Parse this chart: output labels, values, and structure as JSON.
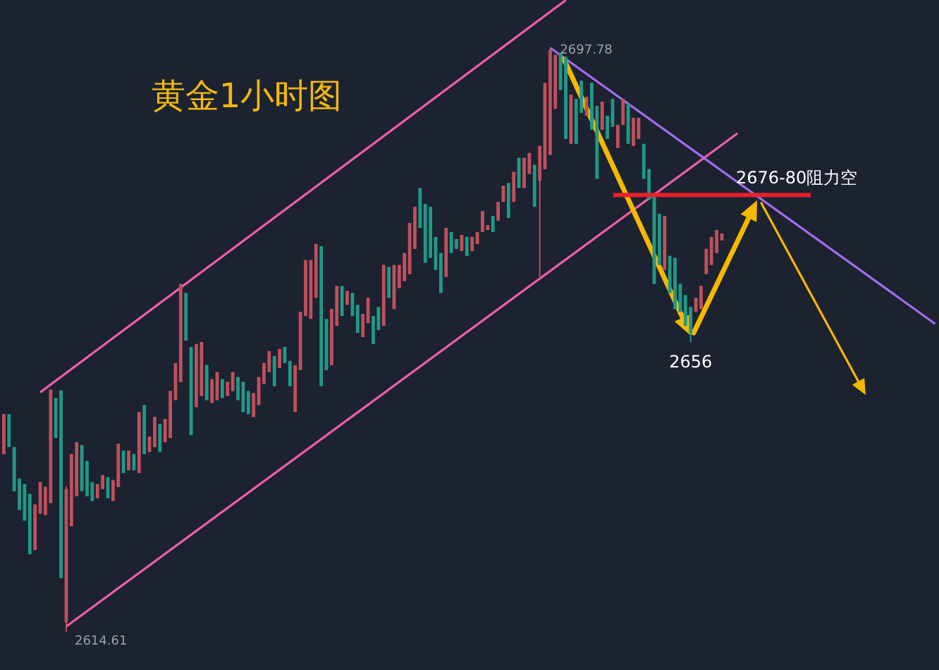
{
  "chart_data": {
    "type": "candlestick",
    "title": "黄金1小时图",
    "categories": [
      null,
      null,
      null,
      null,
      null,
      null,
      null,
      null,
      null,
      null,
      null,
      null,
      null,
      null,
      null,
      null,
      null,
      null,
      null,
      null,
      null,
      null,
      null,
      null,
      null,
      null,
      null,
      null,
      null,
      null,
      null,
      null,
      null,
      null,
      null,
      null,
      null,
      null,
      null,
      null,
      null,
      null,
      null,
      null,
      null,
      null,
      null,
      null,
      null,
      null,
      null,
      null,
      null,
      null,
      null,
      null,
      null,
      null,
      null,
      null,
      null,
      null,
      null,
      null,
      null,
      null,
      null,
      null,
      null,
      null,
      null,
      null,
      null,
      null,
      null,
      null,
      null,
      null,
      null,
      null,
      null,
      null,
      null,
      null,
      null,
      null,
      null,
      null,
      null,
      null,
      null,
      null,
      null,
      null,
      null,
      null,
      null,
      null,
      null,
      null,
      null,
      null,
      null,
      null,
      null,
      null,
      null,
      null,
      null,
      null,
      null,
      null,
      null,
      null,
      null,
      null,
      null,
      null,
      null,
      null,
      null,
      null,
      null,
      null,
      null,
      null,
      null,
      null,
      null,
      null,
      null,
      null,
      null,
      null,
      null,
      null,
      null,
      null,
      null,
      null,
      null,
      null,
      null,
      null,
      null,
      null,
      null,
      null,
      null,
      null,
      null,
      null,
      null,
      null,
      null,
      null,
      null,
      null,
      null,
      null,
      null,
      null,
      null,
      null,
      null,
      null,
      null,
      null,
      null,
      null,
      null,
      null,
      null,
      null,
      null,
      null,
      null,
      null,
      null,
      null
    ],
    "colors": [
      "#c0505d",
      "#1f9a87",
      "#1f9a87",
      "#1f9a87",
      "#1f9a87",
      "#1f9a87",
      "#c0505d",
      "#c0505d",
      "#c0505d",
      "#c0505d",
      "#1f9a87",
      "#1f9a87",
      "#c0505d",
      "#c0505d",
      "#c0505d",
      "#1f9a87",
      "#1f9a87",
      "#1f9a87",
      "#c0505d",
      "#c0505d",
      "#1f9a87",
      "#c0505d",
      "#c0505d",
      "#1f9a87",
      "#c0505d",
      "#1f9a87",
      "#c0505d",
      "#1f9a87",
      "#c0505d",
      "#c0505d",
      "#1f9a87",
      "#c0505d",
      "#c0505d",
      "#c0505d",
      "#c0505d",
      "#1f9a87",
      "#1f9a87",
      "#c0505d",
      "#c0505d",
      "#1f9a87",
      "#c0505d",
      "#c0505d",
      "#1f9a87",
      "#c0505d",
      "#c0505d",
      "#1f9a87",
      "#1f9a87",
      "#1f9a87",
      "#c0505d",
      "#c0505d",
      "#c0505d",
      "#c0505d",
      "#1f9a87",
      "#c0505d",
      "#1f9a87",
      "#1f9a87",
      "#c0505d",
      "#c0505d",
      "#c0505d",
      "#c0505d",
      "#c0505d",
      "#1f9a87",
      "#1f9a87",
      "#c0505d",
      "#c0505d",
      "#1f9a87",
      "#c0505d",
      "#1f9a87",
      "#1f9a87",
      "#c0505d",
      "#c0505d",
      "#1f9a87",
      "#1f9a87",
      "#c0505d",
      "#1f9a87",
      "#c0505d",
      "#c0505d",
      "#c0505d",
      "#c0505d",
      "#c0505d",
      "#1f9a87",
      "#1f9a87",
      "#1f9a87",
      "#1f9a87",
      "#1f9a87",
      "#c0505d",
      "#1f9a87",
      "#1f9a87",
      "#c0505d",
      "#1f9a87",
      "#c0505d",
      "#c0505d",
      "#c0505d",
      "#c0505d",
      "#1f9a87",
      "#c0505d",
      "#c0505d",
      "#1f9a87",
      "#c0505d",
      "#1f9a87",
      "#c0505d",
      "#c0505d",
      "#1f9a87",
      "#c0505d",
      "#c0505d",
      "#c0505d",
      "#c0505d",
      "#1f9a87",
      "#1f9a87",
      "#c0505d",
      "#1f9a87",
      "#1f9a87",
      "#c0505d",
      "#1f9a87",
      "#1f9a87",
      "#c0505d",
      "#1f9a87",
      "#1f9a87",
      "#c0505d",
      "#c0505d",
      "#1f9a87",
      "#c0505d",
      "#c0505d",
      "#1f9a87",
      "#1f9a87",
      "#1f9a87",
      "#1f9a87",
      "#c0505d",
      "#1f9a87",
      "#1f9a87",
      "#1f9a87",
      "#1f9a87",
      "#1f9a87",
      "#c0505d",
      "#c0505d",
      "#c0505d",
      "#c0505d",
      "#c0505d",
      "#c0505d",
      null,
      null,
      null,
      null,
      null,
      null,
      null,
      null,
      null,
      null,
      null,
      null,
      null,
      null,
      null,
      null,
      null,
      null,
      null,
      null,
      null,
      null,
      null,
      null,
      null,
      null,
      null,
      null,
      null,
      null,
      null,
      null,
      null,
      null,
      null,
      null,
      null,
      null,
      null,
      null,
      null
    ],
    "ohlc": [
      [
        2640.0,
        2645.7,
        2640.0,
        2645.7
      ],
      [
        2645.7,
        2645.7,
        2641.0,
        2641.0
      ],
      [
        2641.0,
        2641.0,
        2634.7,
        2634.7
      ],
      [
        2636.5,
        2636.5,
        2632.0,
        2632.0
      ],
      [
        2635.7,
        2635.7,
        2630.5,
        2630.5
      ],
      [
        2634.3,
        2634.3,
        2625.7,
        2625.7
      ],
      [
        2626.3,
        2632.8,
        2626.3,
        2632.8
      ],
      [
        2631.5,
        2636.0,
        2631.5,
        2636.0
      ],
      [
        2631.3,
        2635.3,
        2631.3,
        2635.3
      ],
      [
        2633.0,
        2649.2,
        2633.0,
        2649.2
      ],
      [
        2648.0,
        2648.0,
        2642.3,
        2642.3
      ],
      [
        2649.1,
        2649.1,
        2622.3,
        2622.3
      ],
      [
        2616.0,
        2635.4,
        2614.61,
        2635.0
      ],
      [
        2629.7,
        2640.0,
        2629.7,
        2640.0
      ],
      [
        2634.0,
        2641.7,
        2634.0,
        2641.7
      ],
      [
        2641.3,
        2641.3,
        2634.7,
        2634.7
      ],
      [
        2639.0,
        2639.0,
        2634.0,
        2634.0
      ],
      [
        2636.0,
        2636.0,
        2633.3,
        2633.3
      ],
      [
        2633.7,
        2635.7,
        2633.7,
        2635.7
      ],
      [
        2635.0,
        2637.0,
        2635.0,
        2637.0
      ],
      [
        2636.7,
        2636.7,
        2633.7,
        2633.7
      ],
      [
        2633.3,
        2636.3,
        2633.3,
        2636.3
      ],
      [
        2635.3,
        2641.5,
        2635.3,
        2641.5
      ],
      [
        2640.5,
        2640.5,
        2637.3,
        2637.3
      ],
      [
        2637.7,
        2640.5,
        2637.7,
        2640.5
      ],
      [
        2640.0,
        2640.0,
        2637.7,
        2637.7
      ],
      [
        2637.3,
        2646.0,
        2637.3,
        2646.0
      ],
      [
        2647.0,
        2647.0,
        2640.0,
        2640.0
      ],
      [
        2640.3,
        2642.5,
        2640.3,
        2642.5
      ],
      [
        2641.0,
        2645.3,
        2641.0,
        2645.3
      ],
      [
        2644.3,
        2644.3,
        2640.3,
        2640.3
      ],
      [
        2641.7,
        2645.0,
        2641.7,
        2645.0
      ],
      [
        2642.3,
        2649.0,
        2642.3,
        2649.0
      ],
      [
        2647.7,
        2653.0,
        2647.7,
        2653.0
      ],
      [
        2650.3,
        2664.3,
        2650.3,
        2664.3
      ],
      [
        2663.0,
        2663.0,
        2656.2,
        2656.2
      ],
      [
        2655.3,
        2655.3,
        2642.7,
        2642.7
      ],
      [
        2646.7,
        2655.7,
        2646.7,
        2655.7
      ],
      [
        2648.3,
        2656.0,
        2648.3,
        2656.0
      ],
      [
        2652.7,
        2652.7,
        2647.7,
        2647.7
      ],
      [
        2647.3,
        2650.7,
        2647.3,
        2650.7
      ],
      [
        2647.7,
        2651.7,
        2647.7,
        2651.7
      ],
      [
        2650.7,
        2650.7,
        2648.0,
        2648.0
      ],
      [
        2648.3,
        2650.3,
        2648.3,
        2650.3
      ],
      [
        2649.0,
        2651.7,
        2649.0,
        2651.7
      ],
      [
        2651.0,
        2651.0,
        2647.7,
        2647.7
      ],
      [
        2650.3,
        2650.3,
        2646.0,
        2646.0
      ],
      [
        2649.0,
        2649.0,
        2645.7,
        2645.7
      ],
      [
        2645.3,
        2648.7,
        2645.3,
        2648.7
      ],
      [
        2647.0,
        2651.0,
        2647.0,
        2651.0
      ],
      [
        2650.0,
        2653.0,
        2650.0,
        2653.0
      ],
      [
        2651.7,
        2654.7,
        2651.7,
        2654.7
      ],
      [
        2654.0,
        2654.0,
        2649.7,
        2649.7
      ],
      [
        2652.3,
        2655.0,
        2652.3,
        2655.0
      ],
      [
        2655.3,
        2655.3,
        2653.0,
        2653.0
      ],
      [
        2653.3,
        2653.3,
        2649.7,
        2649.7
      ],
      [
        2646.0,
        2652.7,
        2646.0,
        2652.7
      ],
      [
        2652.0,
        2660.3,
        2652.0,
        2660.3
      ],
      [
        2659.7,
        2667.7,
        2659.7,
        2667.7
      ],
      [
        2659.3,
        2667.7,
        2659.3,
        2667.7
      ],
      [
        2662.3,
        2670.0,
        2662.3,
        2670.0
      ],
      [
        2669.7,
        2669.7,
        2649.7,
        2649.7
      ],
      [
        2659.3,
        2659.3,
        2652.0,
        2652.0
      ],
      [
        2652.7,
        2660.7,
        2652.7,
        2660.7
      ],
      [
        2658.3,
        2664.0,
        2658.3,
        2664.0
      ],
      [
        2664.0,
        2664.0,
        2659.7,
        2659.7
      ],
      [
        2661.3,
        2663.3,
        2661.3,
        2663.3
      ],
      [
        2663.0,
        2663.0,
        2659.7,
        2659.7
      ],
      [
        2661.3,
        2661.3,
        2657.3,
        2657.3
      ],
      [
        2656.7,
        2660.0,
        2656.7,
        2660.0
      ],
      [
        2658.7,
        2662.3,
        2658.7,
        2662.3
      ],
      [
        2659.7,
        2659.7,
        2655.7,
        2655.7
      ],
      [
        2661.0,
        2661.0,
        2657.7,
        2657.7
      ],
      [
        2658.3,
        2667.0,
        2658.3,
        2667.0
      ],
      [
        2666.7,
        2666.7,
        2662.3,
        2662.3
      ],
      [
        2660.7,
        2667.0,
        2660.7,
        2667.0
      ],
      [
        2663.7,
        2667.0,
        2663.7,
        2667.0
      ],
      [
        2664.7,
        2668.7,
        2664.7,
        2668.7
      ],
      [
        2665.7,
        2673.0,
        2665.7,
        2673.0
      ],
      [
        2669.3,
        2675.3,
        2669.3,
        2675.3
      ],
      [
        2678.0,
        2678.0,
        2672.3,
        2672.3
      ],
      [
        2675.7,
        2675.7,
        2667.3,
        2667.3
      ],
      [
        2675.3,
        2675.3,
        2668.0,
        2668.0
      ],
      [
        2671.0,
        2671.0,
        2666.3,
        2666.3
      ],
      [
        2668.7,
        2668.7,
        2663.0,
        2663.0
      ],
      [
        2665.3,
        2672.3,
        2665.3,
        2672.3
      ],
      [
        2671.7,
        2671.7,
        2668.7,
        2668.7
      ],
      [
        2670.7,
        2670.7,
        2669.3,
        2669.3
      ],
      [
        2669.0,
        2671.3,
        2669.0,
        2671.3
      ],
      [
        2671.0,
        2671.0,
        2668.3,
        2668.3
      ],
      [
        2669.0,
        2671.0,
        2669.0,
        2671.0
      ],
      [
        2670.0,
        2671.7,
        2670.0,
        2671.7
      ],
      [
        2671.7,
        2674.7,
        2671.7,
        2674.7
      ],
      [
        2672.0,
        2672.7,
        2672.0,
        2672.7
      ],
      [
        2674.0,
        2674.0,
        2671.7,
        2671.7
      ],
      [
        2673.3,
        2676.0,
        2673.3,
        2676.0
      ],
      [
        2676.0,
        2678.3,
        2676.0,
        2678.3
      ],
      [
        2678.7,
        2678.7,
        2673.7,
        2673.7
      ],
      [
        2676.0,
        2680.3,
        2676.0,
        2680.3
      ],
      [
        2682.3,
        2682.3,
        2678.0,
        2678.0
      ],
      [
        2678.0,
        2682.3,
        2678.0,
        2682.3
      ],
      [
        2680.0,
        2683.0,
        2680.0,
        2683.0
      ],
      [
        2681.3,
        2681.3,
        2675.3,
        2675.3
      ],
      [
        2679.0,
        2684.0,
        2665.0,
        2684.0
      ],
      [
        2680.7,
        2693.0,
        2680.7,
        2693.0
      ],
      [
        2682.7,
        2697.78,
        2682.7,
        2697.7
      ],
      [
        2689.3,
        2697.0,
        2689.3,
        2697.0
      ],
      [
        2697.3,
        2697.3,
        2692.0,
        2692.0
      ],
      [
        2696.7,
        2696.7,
        2685.0,
        2685.0
      ],
      [
        2684.3,
        2691.3,
        2684.3,
        2691.3
      ],
      [
        2690.7,
        2690.7,
        2684.3,
        2684.3
      ],
      [
        2693.3,
        2693.3,
        2688.7,
        2688.7
      ],
      [
        2688.3,
        2691.0,
        2688.3,
        2691.0
      ],
      [
        2693.0,
        2693.0,
        2686.3,
        2686.3
      ],
      [
        2689.7,
        2689.7,
        2679.3,
        2679.3
      ],
      [
        2686.3,
        2690.3,
        2686.3,
        2690.3
      ],
      [
        2688.3,
        2688.3,
        2685.0,
        2685.0
      ],
      [
        2690.7,
        2690.7,
        2686.7,
        2686.7
      ],
      [
        2683.7,
        2687.0,
        2683.7,
        2687.0
      ],
      [
        2687.0,
        2690.7,
        2687.0,
        2690.7
      ],
      [
        2690.0,
        2690.0,
        2684.3,
        2684.3
      ],
      [
        2684.0,
        2688.0,
        2684.0,
        2688.0
      ],
      [
        2685.0,
        2688.0,
        2685.0,
        2688.0
      ],
      [
        2684.3,
        2684.3,
        2679.3,
        2679.3
      ],
      [
        2680.7,
        2680.7,
        2676.3,
        2676.3
      ],
      [
        2677.0,
        2677.0,
        2664.3,
        2664.3
      ],
      [
        2674.3,
        2674.3,
        2667.0,
        2667.0
      ],
      [
        2666.3,
        2674.0,
        2666.3,
        2674.0
      ],
      [
        2668.3,
        2668.3,
        2663.0,
        2663.0
      ],
      [
        2668.0,
        2668.0,
        2660.7,
        2660.7
      ],
      [
        2664.3,
        2664.3,
        2660.3,
        2660.3
      ],
      [
        2662.7,
        2662.7,
        2658.3,
        2658.3
      ],
      [
        2661.0,
        2661.0,
        2656.0,
        2657.3
      ],
      [
        2660.3,
        2662.3,
        2660.3,
        2662.3
      ],
      [
        2660.7,
        2664.0,
        2660.7,
        2664.0
      ],
      [
        2665.7,
        2669.3,
        2665.7,
        2669.3
      ],
      [
        2667.0,
        2671.0,
        2667.0,
        2671.0
      ],
      [
        2668.7,
        2672.0,
        2668.7,
        2672.0
      ],
      [
        2670.5,
        2671.5,
        2670.5,
        2671.5
      ],
      null,
      null,
      null,
      null,
      null,
      null,
      null,
      null,
      null,
      null,
      null,
      null,
      null,
      null,
      null,
      null,
      null,
      null,
      null,
      null,
      null,
      null,
      null,
      null,
      null,
      null,
      null,
      null,
      null,
      null,
      null,
      null,
      null,
      null,
      null,
      null,
      null,
      null,
      null,
      null,
      null
    ],
    "series": [
      {
        "type": "line",
        "color": "#ee5fa8",
        "values": [
          null,
          null,
          null,
          null,
          null,
          null,
          null,
          2648.8,
          null,
          null,
          null,
          null,
          null,
          null,
          null,
          null,
          null,
          null,
          null,
          null,
          null,
          null,
          null,
          null,
          null,
          null,
          null,
          null,
          null,
          null,
          null,
          null,
          null,
          null,
          null,
          null,
          null,
          null,
          null,
          null,
          null,
          null,
          null,
          null,
          null,
          null,
          null,
          null,
          null,
          null,
          null,
          null,
          null,
          null,
          null,
          null,
          null,
          null,
          null,
          null,
          null,
          null,
          null,
          null,
          null,
          null,
          null,
          null,
          null,
          null,
          null,
          null,
          null,
          null,
          null,
          null,
          null,
          null,
          null,
          null,
          null,
          null,
          null,
          null,
          null,
          null,
          null,
          null,
          null,
          null,
          null,
          null,
          null,
          null,
          null,
          null,
          null,
          null,
          null,
          null,
          null,
          null,
          null,
          null,
          null,
          null,
          null,
          null,
          2704.8,
          null,
          null,
          null,
          null,
          null,
          null,
          null,
          null,
          null,
          null,
          null,
          null,
          null,
          null,
          null,
          null,
          null,
          null,
          null,
          null,
          null,
          null,
          null,
          null,
          null,
          null,
          null,
          null,
          null,
          null,
          null,
          null,
          null,
          null,
          null,
          null,
          null,
          null,
          null,
          null,
          null,
          null,
          null,
          null,
          null,
          null,
          null,
          null,
          null,
          null,
          null,
          null,
          null,
          null,
          null,
          null,
          null,
          null,
          null,
          null,
          null,
          null,
          null,
          null,
          null,
          null,
          null,
          null,
          null,
          null,
          null
        ]
      },
      {
        "type": "line",
        "color": "#ee5fa8",
        "values": [
          null,
          null,
          null,
          null,
          null,
          null,
          null,
          null,
          null,
          null,
          null,
          null,
          2615.4,
          null,
          null,
          null,
          null,
          null,
          null,
          null,
          null,
          null,
          null,
          null,
          null,
          null,
          null,
          null,
          null,
          null,
          null,
          null,
          null,
          null,
          null,
          null,
          null,
          null,
          null,
          null,
          null,
          null,
          null,
          null,
          null,
          null,
          null,
          null,
          null,
          null,
          null,
          null,
          null,
          null,
          null,
          null,
          null,
          null,
          null,
          null,
          null,
          null,
          null,
          null,
          null,
          null,
          null,
          null,
          null,
          null,
          null,
          null,
          null,
          null,
          null,
          null,
          null,
          null,
          null,
          null,
          null,
          null,
          null,
          null,
          null,
          null,
          null,
          null,
          null,
          null,
          null,
          null,
          null,
          null,
          null,
          null,
          null,
          null,
          null,
          null,
          null,
          null,
          null,
          null,
          null,
          null,
          null,
          null,
          null,
          null,
          null,
          null,
          null,
          null,
          null,
          null,
          null,
          null,
          null,
          null,
          null,
          null,
          null,
          null,
          null,
          null,
          null,
          null,
          null,
          null,
          null,
          null,
          null,
          null,
          null,
          null,
          null,
          null,
          null,
          null,
          null,
          2685.8,
          null,
          null,
          null,
          null,
          null,
          null,
          null,
          null,
          null,
          null,
          null,
          null,
          null,
          null,
          null,
          null,
          null,
          null,
          null,
          null,
          null,
          null,
          null,
          null,
          null,
          null,
          null,
          null,
          null,
          null,
          null,
          null,
          null,
          null,
          null,
          null,
          null,
          null
        ]
      },
      {
        "type": "line",
        "color": "#a46cf0",
        "values": [
          null,
          null,
          null,
          null,
          null,
          null,
          null,
          null,
          null,
          null,
          null,
          null,
          null,
          null,
          null,
          null,
          null,
          null,
          null,
          null,
          null,
          null,
          null,
          null,
          null,
          null,
          null,
          null,
          null,
          null,
          null,
          null,
          null,
          null,
          null,
          null,
          null,
          null,
          null,
          null,
          null,
          null,
          null,
          null,
          null,
          null,
          null,
          null,
          null,
          null,
          null,
          null,
          null,
          null,
          null,
          null,
          null,
          null,
          null,
          null,
          null,
          null,
          null,
          null,
          null,
          null,
          null,
          null,
          null,
          null,
          null,
          null,
          null,
          null,
          null,
          null,
          null,
          null,
          null,
          null,
          null,
          null,
          null,
          null,
          null,
          null,
          null,
          null,
          null,
          null,
          null,
          null,
          null,
          null,
          null,
          null,
          null,
          null,
          null,
          null,
          null,
          null,
          null,
          null,
          null,
          2698,
          null,
          null,
          null,
          null,
          null,
          null,
          null,
          null,
          null,
          null,
          null,
          null,
          null,
          null,
          null,
          null,
          null,
          null,
          null,
          null,
          null,
          null,
          null,
          null,
          null,
          null,
          null,
          null,
          null,
          null,
          null,
          null,
          null,
          null,
          null,
          null,
          null,
          null,
          null,
          null,
          null,
          null,
          null,
          null,
          null,
          null,
          null,
          null,
          null,
          null,
          null,
          null,
          null,
          null,
          null,
          null,
          null,
          null,
          null,
          null,
          null,
          null,
          null,
          null,
          null,
          null,
          null,
          null,
          null,
          null,
          null,
          null,
          null,
          2658.6
        ]
      }
    ],
    "ref_lines": [
      {
        "axis": "y",
        "value": 2677,
        "label": "2676-80阻力空",
        "color": "#e8202a"
      }
    ],
    "annotations": [
      "2697.78",
      "2614.61",
      "2656"
    ]
  }
}
